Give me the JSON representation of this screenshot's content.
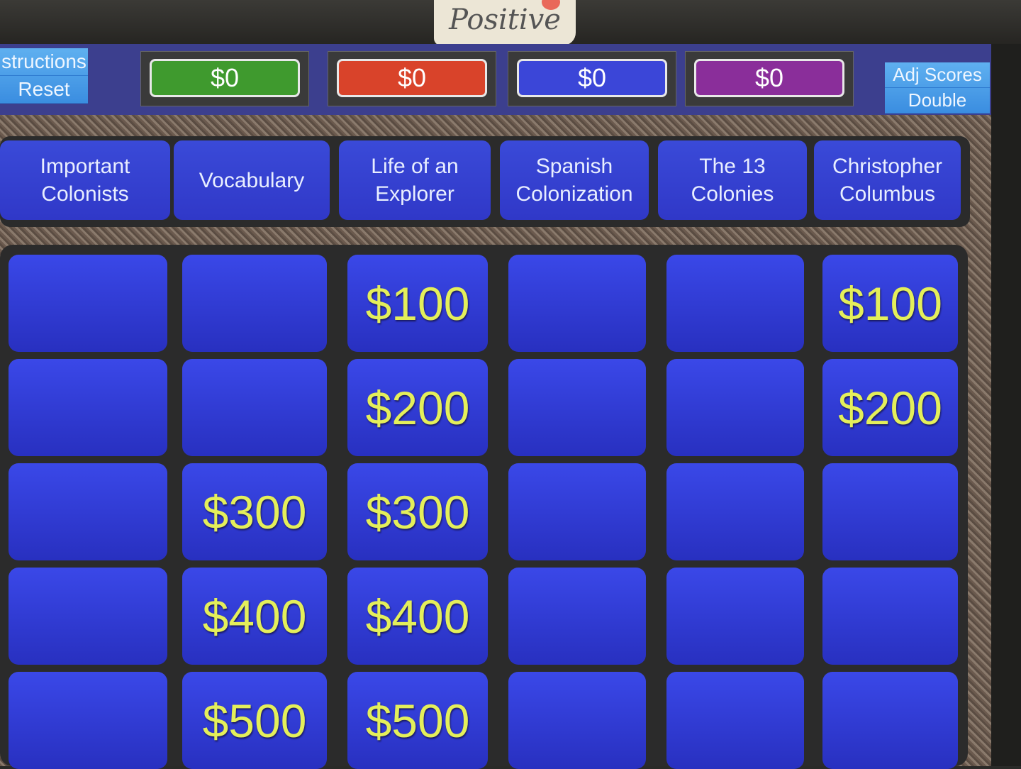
{
  "sticker_text": "Positive",
  "controls": {
    "instructions_label": "structions",
    "reset_label": "Reset",
    "adj_scores_label": "Adj Scores",
    "double_label": "Double"
  },
  "scores": [
    {
      "value": "$0",
      "color": "#3f9a2e"
    },
    {
      "value": "$0",
      "color": "#d9432a"
    },
    {
      "value": "$0",
      "color": "#3b46d8"
    },
    {
      "value": "$0",
      "color": "#8a2e9a"
    }
  ],
  "board": {
    "categories": [
      "Important Colonists",
      "Vocabulary",
      "Life of an Explorer",
      "Spanish Colonization",
      "The 13 Colonies",
      "Christopher Columbus"
    ],
    "columns": [
      {
        "cells": [
          "",
          "",
          "",
          "",
          ""
        ]
      },
      {
        "cells": [
          "",
          "",
          "$300",
          "$400",
          "$500"
        ]
      },
      {
        "cells": [
          "$100",
          "$200",
          "$300",
          "$400",
          "$500"
        ]
      },
      {
        "cells": [
          "",
          "",
          "",
          "",
          ""
        ]
      },
      {
        "cells": [
          "",
          "",
          "",
          "",
          ""
        ]
      },
      {
        "cells": [
          "$100",
          "$200",
          "",
          "",
          ""
        ]
      }
    ]
  }
}
